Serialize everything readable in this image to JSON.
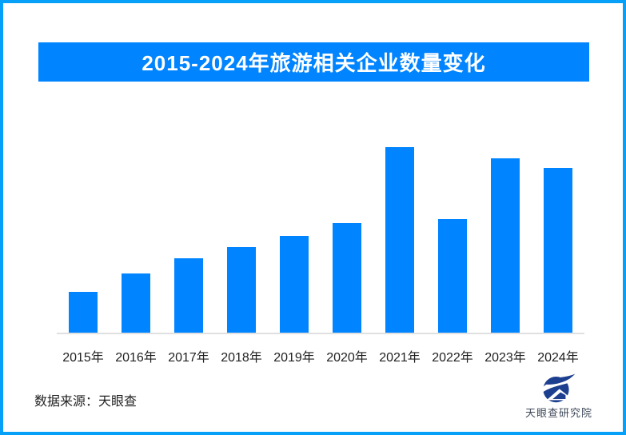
{
  "page": {
    "background": "#ffffff",
    "border_color": "#06a0f9"
  },
  "header": {
    "title": "2015-2024年旅游相关企业数量变化",
    "bg": "#0084ff",
    "text_color": "#ffffff"
  },
  "chart_data": {
    "type": "bar",
    "title": "2015-2024年旅游相关企业数量变化",
    "categories": [
      "2015年",
      "2016年",
      "2017年",
      "2018年",
      "2019年",
      "2020年",
      "2021年",
      "2022年",
      "2023年",
      "2024年"
    ],
    "values": [
      22,
      32,
      40,
      46,
      52,
      59,
      100,
      61,
      94,
      89
    ],
    "ylim": [
      0,
      100
    ],
    "xlabel": "",
    "ylabel": "",
    "grid": false,
    "legend": "none",
    "bar_color": "#0084ff",
    "axis_line_color": "#e0e0e0",
    "tick_label_color": "#212121"
  },
  "footer": {
    "source_label": "数据来源：天眼查"
  },
  "logo": {
    "name": "天眼查研究院",
    "icon": "tianyancha-eye-logo-icon",
    "icon_color": "#1d3f8f",
    "text_color": "#3f4a5a"
  }
}
